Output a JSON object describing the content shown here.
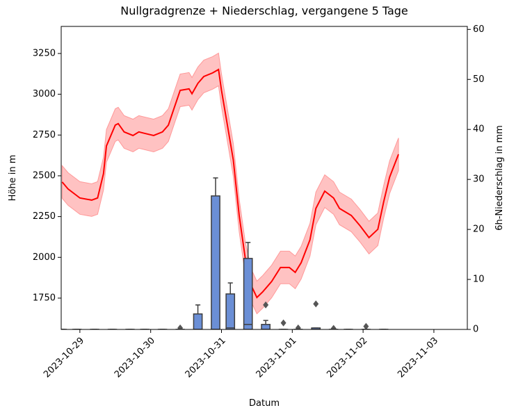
{
  "chart_data": {
    "type": "line",
    "title": "Nullgradgrenze + Niederschlag, vergangene 5 Tage",
    "xlabel": "Datum",
    "ylabel": "Höhe in m",
    "y2label": "6h-Niederschlag in mm",
    "xlim": [
      "2023-10-28T17:40",
      "2023-11-03T11:20"
    ],
    "xticks": [
      "2023-10-29",
      "2023-10-30",
      "2023-10-31",
      "2023-11-01",
      "2023-11-02",
      "2023-11-03"
    ],
    "ylim": [
      1558,
      3416
    ],
    "yticks": [
      1750,
      2000,
      2250,
      2500,
      2750,
      3000,
      3250
    ],
    "y2lim": [
      0,
      60.6
    ],
    "y2ticks": [
      0,
      10,
      20,
      30,
      40,
      50,
      60
    ],
    "series": [
      {
        "type": "line",
        "color": "#ff0000",
        "band_color": "#ff9999",
        "x": [
          "2023-10-28T18:00",
          "2023-10-28T20:00",
          "2023-10-29T00:00",
          "2023-10-29T04:00",
          "2023-10-29T06:00",
          "2023-10-29T08:00",
          "2023-10-29T09:00",
          "2023-10-29T12:00",
          "2023-10-29T13:00",
          "2023-10-29T15:00",
          "2023-10-29T18:00",
          "2023-10-29T20:00",
          "2023-10-29T22:00",
          "2023-10-30T01:00",
          "2023-10-30T04:00",
          "2023-10-30T06:00",
          "2023-10-30T08:00",
          "2023-10-30T10:00",
          "2023-10-30T13:00",
          "2023-10-30T14:00",
          "2023-10-30T16:00",
          "2023-10-30T18:00",
          "2023-10-30T21:00",
          "2023-10-30T23:00",
          "2023-10-31T00:00",
          "2023-10-31T02:00",
          "2023-10-31T04:00",
          "2023-10-31T06:00",
          "2023-10-31T08:00",
          "2023-10-31T10:00",
          "2023-10-31T12:00",
          "2023-10-31T14:00",
          "2023-10-31T17:00",
          "2023-10-31T20:00",
          "2023-10-31T23:00",
          "2023-11-01T01:00",
          "2023-11-01T03:00",
          "2023-11-01T06:00",
          "2023-11-01T08:00",
          "2023-11-01T11:00",
          "2023-11-01T14:00",
          "2023-11-01T16:00",
          "2023-11-01T20:00",
          "2023-11-01T23:00",
          "2023-11-02T02:00",
          "2023-11-02T05:00",
          "2023-11-02T07:00",
          "2023-11-02T09:00",
          "2023-11-02T12:00"
        ],
        "values": [
          2462,
          2419,
          2364,
          2351,
          2364,
          2513,
          2683,
          2811,
          2820,
          2769,
          2747,
          2769,
          2760,
          2747,
          2769,
          2811,
          2918,
          3024,
          3033,
          3003,
          3067,
          3109,
          3131,
          3152,
          3024,
          2811,
          2598,
          2257,
          2002,
          1831,
          1754,
          1789,
          1852,
          1938,
          1938,
          1908,
          1967,
          2108,
          2300,
          2406,
          2364,
          2300,
          2257,
          2193,
          2121,
          2172,
          2342,
          2492,
          2632
        ],
        "lower": [
          2362,
          2319,
          2264,
          2251,
          2264,
          2413,
          2583,
          2711,
          2720,
          2669,
          2647,
          2669,
          2660,
          2647,
          2669,
          2711,
          2818,
          2924,
          2933,
          2903,
          2967,
          3009,
          3031,
          3052,
          2924,
          2711,
          2498,
          2157,
          1902,
          1731,
          1654,
          1689,
          1752,
          1838,
          1838,
          1808,
          1867,
          2008,
          2200,
          2306,
          2264,
          2200,
          2157,
          2093,
          2021,
          2072,
          2242,
          2392,
          2532
        ],
        "upper": [
          2562,
          2519,
          2464,
          2451,
          2464,
          2613,
          2783,
          2911,
          2920,
          2869,
          2847,
          2869,
          2860,
          2847,
          2869,
          2911,
          3018,
          3124,
          3133,
          3103,
          3167,
          3209,
          3231,
          3252,
          3124,
          2911,
          2698,
          2357,
          2102,
          1931,
          1854,
          1889,
          1952,
          2038,
          2038,
          2008,
          2067,
          2208,
          2400,
          2506,
          2464,
          2400,
          2357,
          2293,
          2221,
          2272,
          2442,
          2592,
          2732
        ]
      },
      {
        "type": "box",
        "axis": "y2",
        "color": "#6b8fd6",
        "edge_color": "#3d3d3d",
        "x": [
          "2023-10-28T18:00",
          "2023-10-28T23:00",
          "2023-10-29T05:00",
          "2023-10-29T11:00",
          "2023-10-29T17:00",
          "2023-10-29T22:00",
          "2023-10-30T04:00",
          "2023-10-30T10:00",
          "2023-10-30T16:00",
          "2023-10-30T22:00",
          "2023-10-31T03:00",
          "2023-10-31T09:00",
          "2023-10-31T15:00",
          "2023-10-31T21:00",
          "2023-11-01T02:00",
          "2023-11-01T08:00",
          "2023-11-01T14:00",
          "2023-11-01T19:00",
          "2023-11-02T01:00",
          "2023-11-02T07:00"
        ],
        "low": [
          0,
          0,
          0,
          0,
          0,
          0,
          0,
          0,
          0,
          0,
          0,
          0,
          0,
          0,
          0,
          0,
          0,
          0,
          0,
          0
        ],
        "q1": [
          0,
          0,
          0,
          0,
          0,
          0,
          0,
          0,
          0,
          0,
          0,
          0,
          0,
          0,
          0,
          0,
          0,
          0,
          0,
          0
        ],
        "median": [
          0,
          0,
          0,
          0,
          0,
          0,
          0,
          0,
          0,
          0,
          0.3,
          1.0,
          0,
          0,
          0,
          0,
          0,
          0,
          0,
          0
        ],
        "q3": [
          0,
          0,
          0,
          0,
          0,
          0,
          0,
          0,
          3.1,
          26.7,
          7.1,
          14.2,
          1.0,
          0,
          0,
          0.3,
          0,
          0,
          0,
          0
        ],
        "high": [
          0,
          0,
          0,
          0,
          0,
          0,
          0,
          0,
          4.9,
          30.3,
          9.3,
          17.4,
          1.8,
          0,
          0,
          0.3,
          0,
          0,
          0,
          0
        ],
        "outliers": [
          [],
          [],
          [],
          [],
          [],
          [],
          [],
          [
            0.3
          ],
          [],
          [],
          [],
          [],
          [
            4.9
          ],
          [
            1.3
          ],
          [
            0.3
          ],
          [
            5.1
          ],
          [
            0.2
          ],
          [],
          [
            0.6
          ],
          []
        ]
      }
    ]
  }
}
